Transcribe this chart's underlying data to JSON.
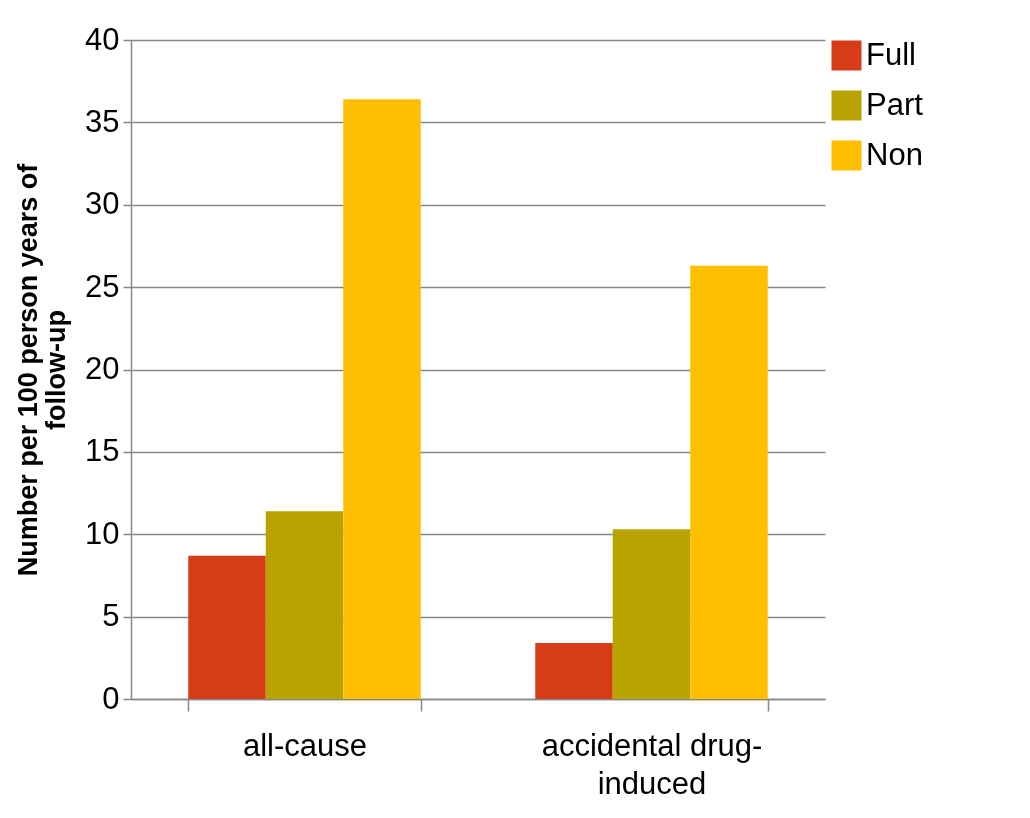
{
  "chart_data": {
    "type": "bar",
    "ylabel": "Number per 100 person years of follow-up",
    "categories": [
      "all-cause",
      "accidental drug-induced"
    ],
    "series": [
      {
        "name": "Full",
        "color": "#d63c17",
        "values": [
          8.7,
          3.4
        ]
      },
      {
        "name": "Part",
        "color": "#b8a300",
        "values": [
          11.4,
          10.3
        ]
      },
      {
        "name": "Non",
        "color": "#fdbf00",
        "values": [
          36.4,
          26.3
        ]
      }
    ],
    "ylim": [
      0,
      40
    ],
    "yticks": [
      0,
      5,
      10,
      15,
      20,
      25,
      30,
      35,
      40
    ],
    "grid": "y",
    "legend": "right"
  }
}
